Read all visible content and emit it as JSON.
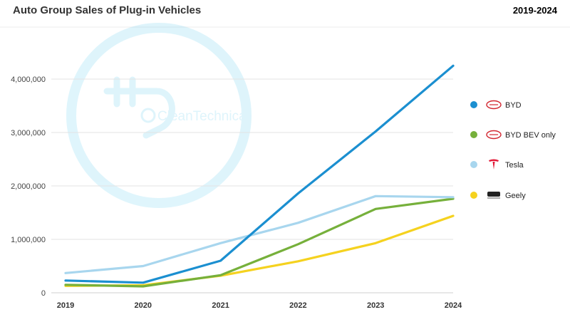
{
  "header": {
    "title": "Auto Group Sales of Plug-in Vehicles",
    "date_range": "2019-2024"
  },
  "watermark": {
    "text": "CleanTechnica"
  },
  "colors": {
    "byd": "#1b8fd0",
    "byd_bev": "#76b03b",
    "tesla": "#a8d6ee",
    "geely": "#f5d21f",
    "accent": "#4fc6ec",
    "grid": "#e3e3e3"
  },
  "legend": [
    {
      "series": "BYD",
      "label": "BYD",
      "icon": "byd-logo-icon"
    },
    {
      "series": "BYD BEV only",
      "label": "BYD BEV only",
      "icon": "byd-logo-icon"
    },
    {
      "series": "Tesla",
      "label": "Tesla",
      "icon": "tesla-logo-icon"
    },
    {
      "series": "Geely",
      "label": "Geely",
      "icon": "geely-logo-icon"
    }
  ],
  "chart_data": {
    "type": "line",
    "title": "Auto Group Sales of Plug-in Vehicles",
    "subtitle": "2019-2024",
    "xlabel": "",
    "ylabel": "",
    "x": [
      "2019",
      "2020",
      "2021",
      "2022",
      "2023",
      "2024"
    ],
    "ylim": [
      0,
      4250000
    ],
    "yticks": [
      0,
      1000000,
      2000000,
      3000000,
      4000000
    ],
    "ytick_labels": [
      "0",
      "1,000,000",
      "2,000,000",
      "3,000,000",
      "4,000,000"
    ],
    "grid": true,
    "legend_position": "right",
    "series": [
      {
        "name": "BYD",
        "color": "#1b8fd0",
        "values": [
          230000,
          190000,
          600000,
          1860000,
          3020000,
          4250000
        ]
      },
      {
        "name": "BYD BEV only",
        "color": "#76b03b",
        "values": [
          150000,
          120000,
          330000,
          910000,
          1570000,
          1760000
        ]
      },
      {
        "name": "Tesla",
        "color": "#a8d6ee",
        "values": [
          370000,
          500000,
          930000,
          1310000,
          1810000,
          1790000
        ]
      },
      {
        "name": "Geely",
        "color": "#f5d21f",
        "values": [
          130000,
          140000,
          320000,
          590000,
          930000,
          1440000
        ]
      }
    ]
  }
}
